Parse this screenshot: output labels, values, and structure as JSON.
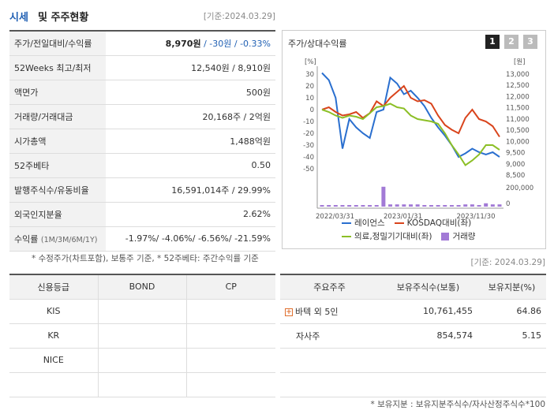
{
  "header": {
    "title_a": "시세",
    "title_b": "및 주주현황",
    "date": "[기준:2024.03.29]"
  },
  "price_rows": [
    {
      "label": "주가/전일대비/수익률",
      "v1": "8,970원",
      "v2": " / -30원 / -0.33%"
    },
    {
      "label": "52Weeks 최고/최저",
      "v1": "12,540원 / 8,910원"
    },
    {
      "label": "액면가",
      "v1": "500원"
    },
    {
      "label": "거래량/거래대금",
      "v1": "20,168주 / 2억원"
    },
    {
      "label": "시가총액",
      "v1": "1,488억원"
    },
    {
      "label": "52주베타",
      "v1": "0.50"
    },
    {
      "label": "발행주식수/유동비율",
      "v1": "16,591,014주 / 29.99%"
    },
    {
      "label": "외국인지분율",
      "v1": "2.62%"
    },
    {
      "label": "수익률",
      "label_small": "(1M/3M/6M/1Y)",
      "v1": "-1.97%/ -4.06%/ -6.56%/ -21.59%"
    }
  ],
  "note1": "* 수정주가(차트포함), 보통주 기준, * 52주베타: 주간수익률 기준",
  "chart_panel": {
    "title": "주가/상대수익률",
    "buttons": [
      "1",
      "2",
      "3"
    ]
  },
  "chart_data": {
    "type": "line",
    "left_unit": "[%]",
    "right_unit": "[원]",
    "left_ticks": [
      30,
      20,
      10,
      0,
      -10,
      -20,
      -30,
      -40,
      -50
    ],
    "right_ticks": [
      "13,000",
      "12,500",
      "12,000",
      "11,500",
      "11,000",
      "10,500",
      "10,000",
      "9,500",
      "9,000",
      "8,500"
    ],
    "volume_ticks": [
      "200,000",
      "0"
    ],
    "x_labels": [
      "2022/03/31",
      "2023/01/31",
      "2023/11/30"
    ],
    "ylim_left": [
      -50,
      30
    ],
    "series": [
      {
        "name": "레이언스",
        "color": "#2a6fcf",
        "values": [
          31,
          25,
          10,
          -33,
          -8,
          -15,
          -20,
          -24,
          -2,
          0,
          27,
          22,
          13,
          16,
          10,
          3,
          -7,
          -15,
          -22,
          -30,
          -40,
          -37,
          -33,
          -36,
          -38,
          -36,
          -40
        ]
      },
      {
        "name": "KOSDAQ대비(좌)",
        "color": "#d9441c",
        "values": [
          0,
          2,
          -2,
          -5,
          -4,
          -2,
          -7,
          -3,
          7,
          3,
          10,
          15,
          20,
          10,
          7,
          8,
          5,
          -5,
          -13,
          -17,
          -20,
          -7,
          0,
          -8,
          -10,
          -14,
          -23
        ]
      },
      {
        "name": "의료,정밀기기대비(좌)",
        "color": "#8cbf26",
        "values": [
          0,
          -2,
          -5,
          -7,
          -5,
          -6,
          -8,
          -3,
          2,
          3,
          5,
          2,
          1,
          -5,
          -8,
          -9,
          -10,
          -12,
          -20,
          -30,
          -38,
          -47,
          -43,
          -38,
          -30,
          -30,
          -34
        ]
      }
    ],
    "volume": [
      0.05,
      0.05,
      0.05,
      0.05,
      0.05,
      0.05,
      0.05,
      0.05,
      0.05,
      0.9,
      0.1,
      0.1,
      0.1,
      0.1,
      0.1,
      0.05,
      0.05,
      0.05,
      0.05,
      0.05,
      0.05,
      0.1,
      0.1,
      0.05,
      0.15,
      0.1,
      0.1
    ],
    "legend": {
      "s1": "레이언스",
      "s2": "KOSDAQ대비(좌)",
      "s3": "의료,정밀기기대비(좌)",
      "s4": "거래량",
      "vol_color": "#a27ad6"
    }
  },
  "date2": "[기준: 2024.03.29]",
  "credit": {
    "headers": [
      "신용등급",
      "BOND",
      "CP"
    ],
    "rows": [
      [
        "KIS",
        "",
        ""
      ],
      [
        "KR",
        "",
        ""
      ],
      [
        "NICE",
        "",
        ""
      ],
      [
        "",
        "",
        ""
      ]
    ]
  },
  "holders": {
    "headers": [
      "주요주주",
      "보유주식수(보통)",
      "보유지분(%)"
    ],
    "rows": [
      {
        "name": "바텍 외 5인",
        "shares": "10,761,455",
        "pct": "64.86",
        "expand": true
      },
      {
        "name": "자사주",
        "shares": "854,574",
        "pct": "5.15",
        "expand": false
      },
      {
        "name": "",
        "shares": "",
        "pct": "",
        "expand": false
      },
      {
        "name": "",
        "shares": "",
        "pct": "",
        "expand": false
      }
    ]
  },
  "note2": "* 보유지분 : 보유지분주식수/자사산정주식수*100"
}
